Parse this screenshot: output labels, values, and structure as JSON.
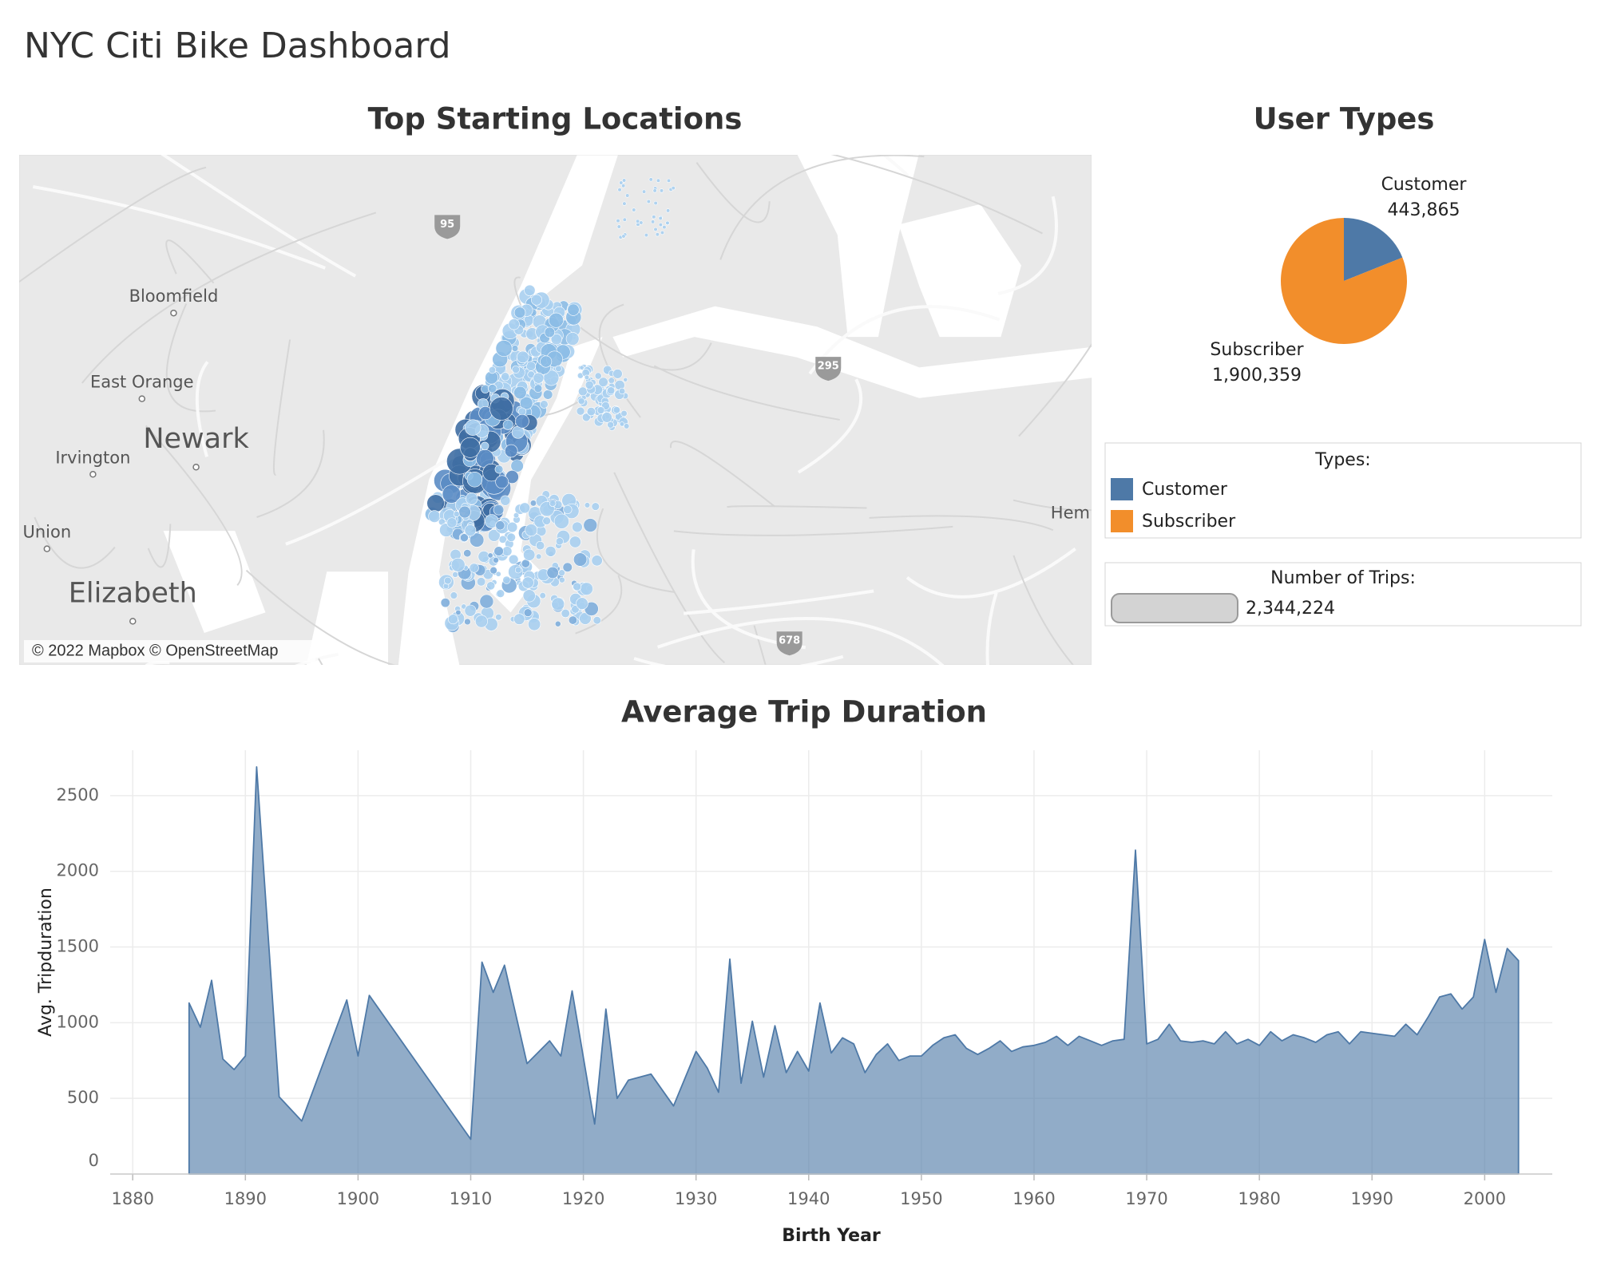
{
  "title": "NYC Citi Bike Dashboard",
  "map": {
    "title": "Top Starting Locations",
    "towns": [
      "Bloomfield",
      "East Orange",
      "Irvington",
      "Union",
      "Hem"
    ],
    "cities": [
      "Newark",
      "Elizabeth"
    ],
    "highways": [
      "95",
      "295",
      "678"
    ],
    "attribution": "© 2022 Mapbox © OpenStreetMap"
  },
  "chart_data": [
    {
      "type": "pie",
      "title": "User Types",
      "categories": [
        "Customer",
        "Subscriber"
      ],
      "values": [
        443865,
        1900359
      ],
      "value_labels": [
        "443,865",
        "1,900,359"
      ],
      "colors": [
        "#4e79a7",
        "#f28e2b"
      ],
      "legend_title": "Types:",
      "size_legend": {
        "title": "Number of Trips:",
        "values": [
          2344224
        ],
        "value_labels": [
          "2,344,224"
        ]
      }
    },
    {
      "type": "area",
      "title": "Average Trip Duration",
      "xlabel": "Birth Year",
      "ylabel": "Avg. Tripduration",
      "color": "#4e79a7",
      "grid": true,
      "x": [
        1885,
        1886,
        1887,
        1888,
        1889,
        1890,
        1891,
        1893,
        1895,
        1899,
        1900,
        1901,
        1910,
        1911,
        1912,
        1913,
        1915,
        1917,
        1918,
        1919,
        1921,
        1922,
        1923,
        1924,
        1926,
        1928,
        1930,
        1931,
        1932,
        1933,
        1934,
        1935,
        1936,
        1937,
        1938,
        1939,
        1940,
        1941,
        1942,
        1943,
        1944,
        1945,
        1946,
        1947,
        1948,
        1949,
        1950,
        1951,
        1952,
        1953,
        1954,
        1955,
        1956,
        1957,
        1958,
        1959,
        1960,
        1961,
        1962,
        1963,
        1964,
        1965,
        1966,
        1967,
        1968,
        1969,
        1970,
        1971,
        1972,
        1973,
        1974,
        1975,
        1976,
        1977,
        1978,
        1979,
        1980,
        1981,
        1982,
        1983,
        1984,
        1985,
        1986,
        1987,
        1988,
        1989,
        1990,
        1991,
        1992,
        1993,
        1994,
        1995,
        1996,
        1997,
        1998,
        1999,
        2000,
        2001,
        2002,
        2003
      ],
      "values": [
        1130,
        970,
        1280,
        760,
        690,
        780,
        2690,
        510,
        350,
        1150,
        780,
        1180,
        230,
        1400,
        1200,
        1380,
        730,
        880,
        780,
        1210,
        330,
        1090,
        500,
        620,
        660,
        450,
        810,
        700,
        540,
        1420,
        600,
        1010,
        640,
        980,
        670,
        810,
        680,
        1130,
        800,
        900,
        860,
        670,
        790,
        860,
        750,
        780,
        780,
        850,
        900,
        920,
        830,
        790,
        830,
        880,
        810,
        840,
        850,
        870,
        910,
        850,
        910,
        880,
        850,
        880,
        890,
        2140,
        860,
        890,
        990,
        880,
        870,
        880,
        860,
        940,
        860,
        890,
        850,
        940,
        880,
        920,
        900,
        870,
        920,
        940,
        860,
        940,
        930,
        920,
        910,
        990,
        920,
        1040,
        1170,
        1190,
        1090,
        1170,
        1550,
        1200,
        1490,
        1410
      ],
      "xlim": [
        1878,
        2006
      ],
      "xticks": [
        1880,
        1890,
        1900,
        1910,
        1920,
        1930,
        1940,
        1950,
        1960,
        1970,
        1980,
        1990,
        2000
      ],
      "ylim": [
        0,
        2800
      ],
      "yticks": [
        0,
        500,
        1000,
        1500,
        2000,
        2500
      ]
    }
  ]
}
